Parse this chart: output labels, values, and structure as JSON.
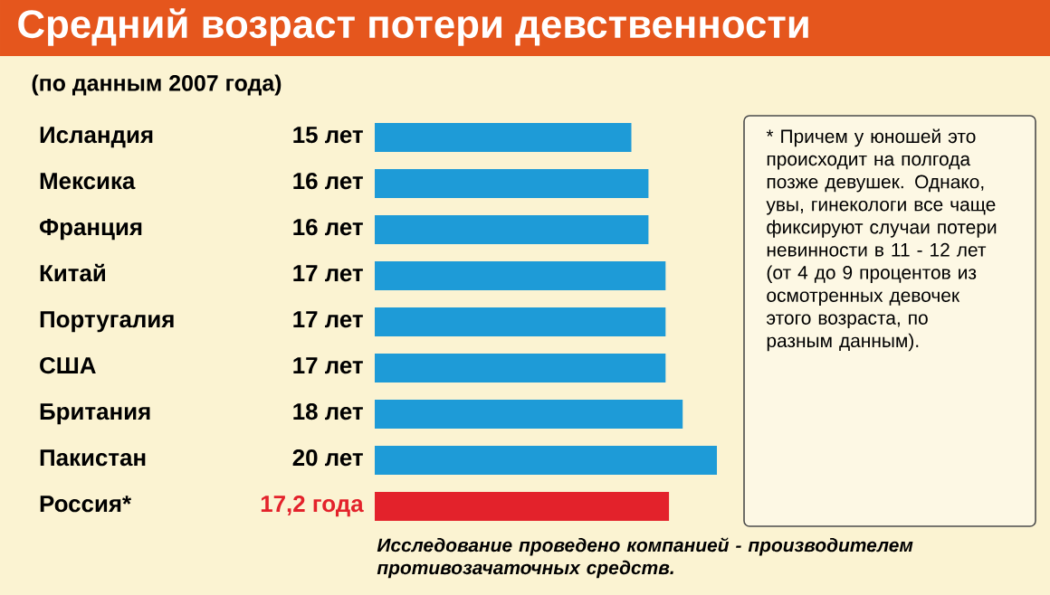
{
  "chart_data": {
    "type": "bar",
    "orientation": "horizontal",
    "title": "Средний возраст потери девственности",
    "subtitle": "(по данным 2007 года)",
    "categories": [
      "Исландия",
      "Мексика",
      "Франция",
      "Китай",
      "Португалия",
      "США",
      "Британия",
      "Пакистан",
      "Россия*"
    ],
    "values": [
      15,
      16,
      16,
      17,
      17,
      17,
      18,
      20,
      17.2
    ],
    "value_labels": [
      "15 лет",
      "16 лет",
      "16 лет",
      "17 лет",
      "17 лет",
      "17 лет",
      "18 лет",
      "20 лет",
      "17,2 года"
    ],
    "colors": [
      "#1e9bd7",
      "#1e9bd7",
      "#1e9bd7",
      "#1e9bd7",
      "#1e9bd7",
      "#1e9bd7",
      "#1e9bd7",
      "#1e9bd7",
      "#e3222b"
    ],
    "annotations": [
      "* Причем у юношей это происходит на полгода позже девушек. Однако, увы, гинекологи все чаще фиксируют случаи потери невинности в 11 - 12 лет (от 4 до 9 процентов из осмотренных девочек этого возраста, по разным данным).",
      "Исследование проведено компанией - производителем противозачаточных средств."
    ]
  }
}
